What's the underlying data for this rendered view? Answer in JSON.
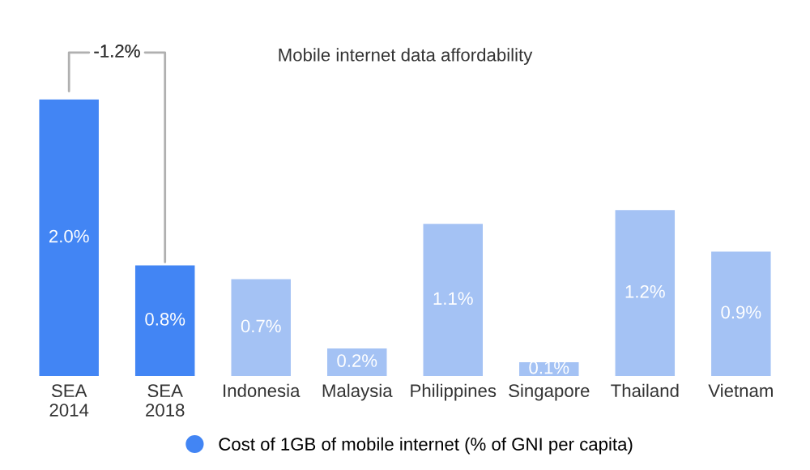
{
  "chart_data": {
    "type": "bar",
    "title": "Mobile internet data affordability",
    "categories": [
      "SEA\n2014",
      "SEA\n2018",
      "Indonesia",
      "Malaysia",
      "Philippines",
      "Singapore",
      "Thailand",
      "Vietnam"
    ],
    "series": [
      {
        "name": "Cost of 1GB of mobile internet (% of GNI per capita)",
        "color": "#4285f4",
        "colors": [
          "#4285f4",
          "#4285f4",
          "#a4c2f4",
          "#a4c2f4",
          "#a4c2f4",
          "#a4c2f4",
          "#a4c2f4",
          "#a4c2f4"
        ],
        "values": [
          2.0,
          0.8,
          0.7,
          0.2,
          1.1,
          0.1,
          1.2,
          0.9
        ],
        "value_labels": [
          "2.0%",
          "0.8%",
          "0.7%",
          "0.2%",
          "1.1%",
          "0.1%",
          "1.2%",
          "0.9%"
        ]
      }
    ],
    "tick_labels": "x",
    "legend": "bottom",
    "marker": "circle",
    "grid": false,
    "annotations": [
      "-1.2%"
    ]
  }
}
